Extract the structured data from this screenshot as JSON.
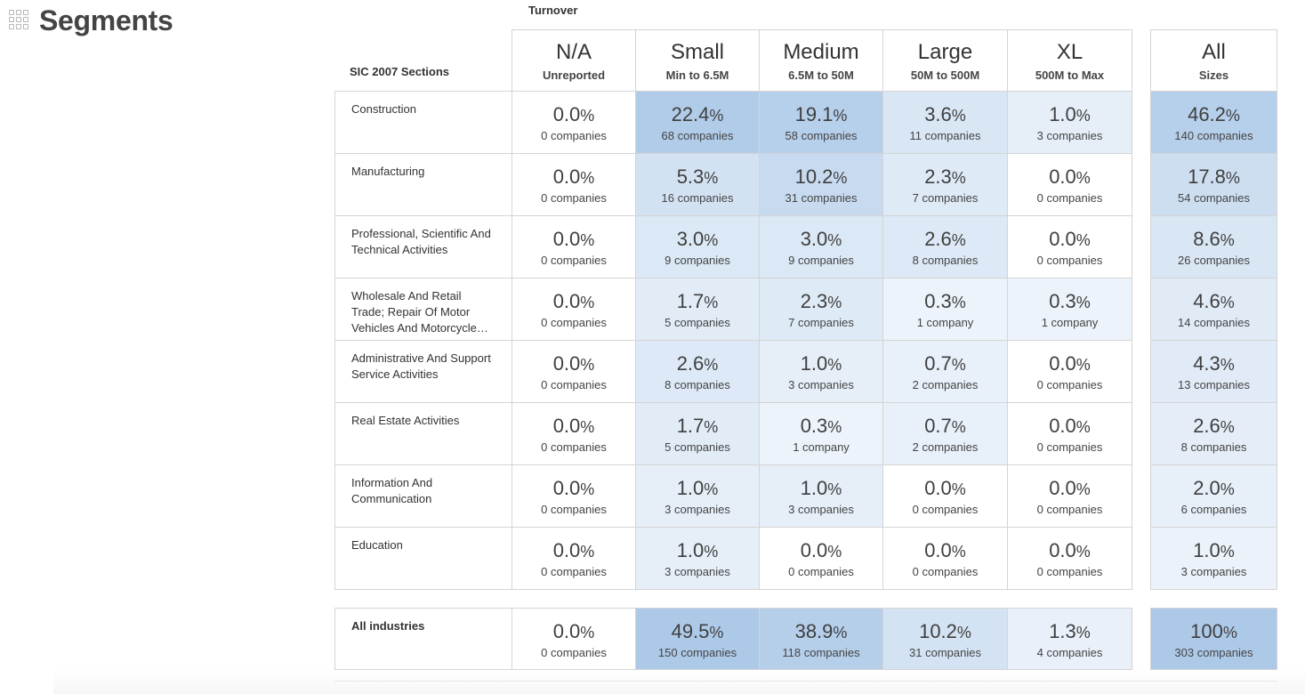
{
  "page": {
    "title": "Segments",
    "icon": "grid-icon"
  },
  "header": {
    "group_label": "Turnover",
    "row_label": "SIC 2007 Sections"
  },
  "colors": {
    "low": "#f4f8fc",
    "high": "#adc9e8"
  },
  "columns": [
    {
      "size": "N/A",
      "range": "Unreported"
    },
    {
      "size": "Small",
      "range": "Min to 6.5M"
    },
    {
      "size": "Medium",
      "range": "6.5M to 50M"
    },
    {
      "size": "Large",
      "range": "50M to 500M"
    },
    {
      "size": "XL",
      "range": "500M to Max"
    }
  ],
  "total_column": {
    "size": "All",
    "range": "Sizes"
  },
  "rows": [
    {
      "label": "Construction",
      "cells": [
        {
          "pct": "0.0",
          "count": "0 companies"
        },
        {
          "pct": "22.4",
          "count": "68 companies"
        },
        {
          "pct": "19.1",
          "count": "58 companies"
        },
        {
          "pct": "3.6",
          "count": "11 companies"
        },
        {
          "pct": "1.0",
          "count": "3 companies"
        }
      ],
      "total": {
        "pct": "46.2",
        "count": "140 companies"
      }
    },
    {
      "label": "Manufacturing",
      "cells": [
        {
          "pct": "0.0",
          "count": "0 companies"
        },
        {
          "pct": "5.3",
          "count": "16 companies"
        },
        {
          "pct": "10.2",
          "count": "31 companies"
        },
        {
          "pct": "2.3",
          "count": "7 companies"
        },
        {
          "pct": "0.0",
          "count": "0 companies"
        }
      ],
      "total": {
        "pct": "17.8",
        "count": "54 companies"
      }
    },
    {
      "label": "Professional, Scientific And Technical Activities",
      "cells": [
        {
          "pct": "0.0",
          "count": "0 companies"
        },
        {
          "pct": "3.0",
          "count": "9 companies"
        },
        {
          "pct": "3.0",
          "count": "9 companies"
        },
        {
          "pct": "2.6",
          "count": "8 companies"
        },
        {
          "pct": "0.0",
          "count": "0 companies"
        }
      ],
      "total": {
        "pct": "8.6",
        "count": "26 companies"
      }
    },
    {
      "label": "Wholesale And Retail Trade; Repair Of Motor Vehicles And Motorcycle…",
      "cells": [
        {
          "pct": "0.0",
          "count": "0 companies"
        },
        {
          "pct": "1.7",
          "count": "5 companies"
        },
        {
          "pct": "2.3",
          "count": "7 companies"
        },
        {
          "pct": "0.3",
          "count": "1 company"
        },
        {
          "pct": "0.3",
          "count": "1 company"
        }
      ],
      "total": {
        "pct": "4.6",
        "count": "14 companies"
      }
    },
    {
      "label": "Administrative And Support Service Activities",
      "cells": [
        {
          "pct": "0.0",
          "count": "0 companies"
        },
        {
          "pct": "2.6",
          "count": "8 companies"
        },
        {
          "pct": "1.0",
          "count": "3 companies"
        },
        {
          "pct": "0.7",
          "count": "2 companies"
        },
        {
          "pct": "0.0",
          "count": "0 companies"
        }
      ],
      "total": {
        "pct": "4.3",
        "count": "13 companies"
      }
    },
    {
      "label": "Real Estate Activities",
      "cells": [
        {
          "pct": "0.0",
          "count": "0 companies"
        },
        {
          "pct": "1.7",
          "count": "5 companies"
        },
        {
          "pct": "0.3",
          "count": "1 company"
        },
        {
          "pct": "0.7",
          "count": "2 companies"
        },
        {
          "pct": "0.0",
          "count": "0 companies"
        }
      ],
      "total": {
        "pct": "2.6",
        "count": "8 companies"
      }
    },
    {
      "label": "Information And Communication",
      "cells": [
        {
          "pct": "0.0",
          "count": "0 companies"
        },
        {
          "pct": "1.0",
          "count": "3 companies"
        },
        {
          "pct": "1.0",
          "count": "3 companies"
        },
        {
          "pct": "0.0",
          "count": "0 companies"
        },
        {
          "pct": "0.0",
          "count": "0 companies"
        }
      ],
      "total": {
        "pct": "2.0",
        "count": "6 companies"
      }
    },
    {
      "label": "Education",
      "cells": [
        {
          "pct": "0.0",
          "count": "0 companies"
        },
        {
          "pct": "1.0",
          "count": "3 companies"
        },
        {
          "pct": "0.0",
          "count": "0 companies"
        },
        {
          "pct": "0.0",
          "count": "0 companies"
        },
        {
          "pct": "0.0",
          "count": "0 companies"
        }
      ],
      "total": {
        "pct": "1.0",
        "count": "3 companies"
      }
    }
  ],
  "summary": {
    "label": "All industries",
    "cells": [
      {
        "pct": "0.0",
        "count": "0 companies"
      },
      {
        "pct": "49.5",
        "count": "150 companies"
      },
      {
        "pct": "38.9",
        "count": "118 companies"
      },
      {
        "pct": "10.2",
        "count": "31 companies"
      },
      {
        "pct": "1.3",
        "count": "4 companies"
      }
    ],
    "total": {
      "pct": "100",
      "count": "303 companies"
    }
  }
}
